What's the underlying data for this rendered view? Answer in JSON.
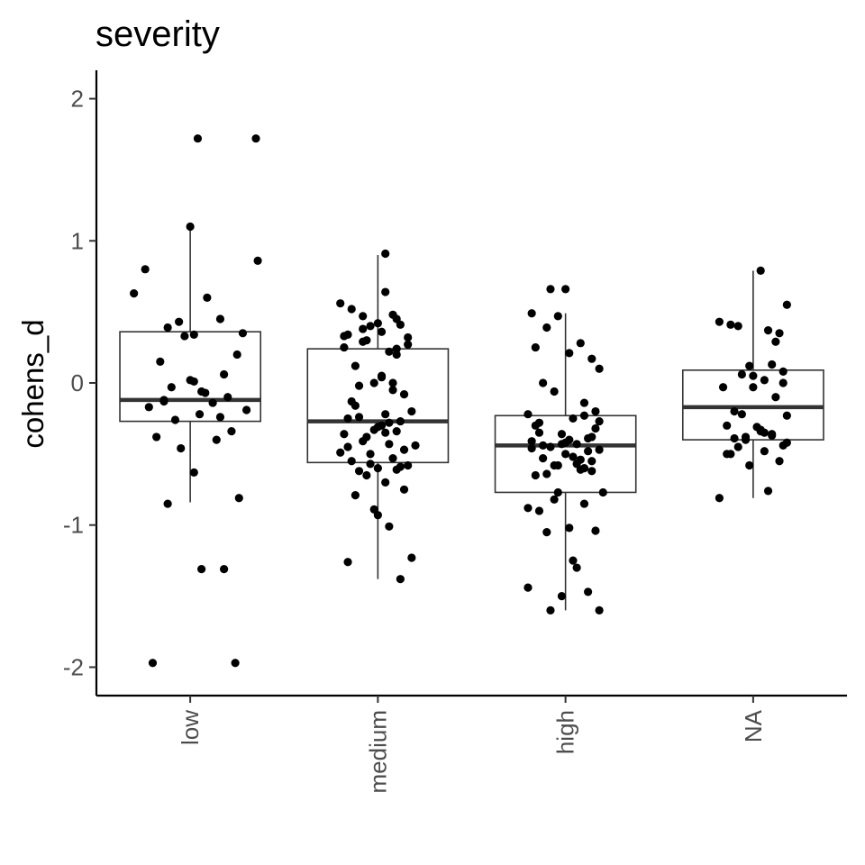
{
  "chart_data": {
    "type": "box",
    "title": "severity",
    "xlabel": "",
    "ylabel": "cohens_d",
    "ylim": [
      -2.2,
      2.2
    ],
    "yticks": [
      -2,
      -1,
      0,
      1,
      2
    ],
    "ytick_labels": [
      "-2",
      "-1",
      "0",
      "1",
      "2"
    ],
    "categories": [
      "low",
      "medium",
      "high",
      "NA"
    ],
    "grid": false,
    "legend": "none",
    "colors": {
      "points": "#000000",
      "box_outline": "#333333",
      "median": "#333333",
      "axis": "#000000",
      "tick_label": "#4d4d4d"
    },
    "boxes": [
      {
        "category": "low",
        "q1": -0.27,
        "median": -0.12,
        "q3": 0.36,
        "whisker_low": -0.84,
        "whisker_high": 1.1
      },
      {
        "category": "medium",
        "q1": -0.56,
        "median": -0.27,
        "q3": 0.24,
        "whisker_low": -1.38,
        "whisker_high": 0.9
      },
      {
        "category": "high",
        "q1": -0.77,
        "median": -0.44,
        "q3": -0.23,
        "whisker_low": -1.6,
        "whisker_high": 0.49
      },
      {
        "category": "NA",
        "q1": -0.4,
        "median": -0.17,
        "q3": 0.09,
        "whisker_low": -0.81,
        "whisker_high": 0.79
      }
    ],
    "points": [
      {
        "category": "low",
        "jitter": [
          0.04,
          0.35,
          0.0,
          -0.24,
          0.36,
          -0.3,
          0.09,
          -0.06,
          0.16,
          -0.12,
          0.28,
          -0.03,
          0.25,
          -0.16,
          0.18,
          -0.1,
          0.08,
          0.2,
          -0.14,
          0.12,
          -0.22,
          0.3,
          0.05,
          -0.08,
          0.22,
          -0.18,
          0.14,
          -0.05,
          0.02,
          0.26,
          -0.12,
          0.18,
          0.06,
          0.24,
          -0.2,
          0.02,
          0.16,
          -0.14,
          0.02,
          0.06,
          0.0
        ],
        "values": [
          1.72,
          1.72,
          1.1,
          0.8,
          0.86,
          0.63,
          0.6,
          0.43,
          0.45,
          0.39,
          0.35,
          0.33,
          0.2,
          0.15,
          0.06,
          -0.03,
          -0.07,
          -0.1,
          -0.12,
          -0.14,
          -0.17,
          -0.19,
          -0.22,
          -0.26,
          -0.34,
          -0.38,
          -0.4,
          -0.46,
          -0.63,
          -0.81,
          -0.85,
          -1.31,
          -1.31,
          -1.97,
          -1.97,
          0.34,
          -0.24,
          -0.13,
          0.01,
          -0.06,
          0.02
        ]
      },
      {
        "category": "medium",
        "jitter": [
          0.04,
          0.04,
          -0.2,
          -0.14,
          -0.08,
          0.08,
          0.0,
          0.12,
          -0.04,
          0.02,
          -0.16,
          0.16,
          -0.06,
          -0.18,
          0.1,
          0.06,
          -0.12,
          0.02,
          -0.02,
          -0.1,
          0.14,
          -0.14,
          0.18,
          -0.16,
          0.06,
          0.0,
          0.1,
          -0.18,
          -0.08,
          0.2,
          -0.2,
          0.08,
          -0.04,
          0.12,
          -0.1,
          -0.06,
          0.04,
          0.14,
          -0.12,
          0.0,
          0.06,
          0.18,
          -0.16,
          0.12,
          -0.02,
          0.1,
          -0.08,
          0.16,
          0.02,
          0.08,
          -0.12,
          0.04,
          -0.06,
          0.14,
          -0.14,
          0.0,
          0.1,
          -0.02,
          0.06,
          -0.18,
          0.12,
          -0.1,
          0.02,
          -0.04,
          0.08,
          0.16,
          -0.16,
          0.04,
          0.1,
          -0.08
        ],
        "values": [
          0.91,
          0.64,
          0.56,
          0.52,
          0.47,
          0.48,
          0.42,
          0.41,
          0.4,
          0.36,
          0.34,
          0.32,
          0.3,
          0.25,
          0.24,
          0.22,
          0.12,
          0.04,
          0.0,
          -0.02,
          -0.08,
          -0.13,
          -0.2,
          -0.25,
          -0.28,
          -0.31,
          -0.34,
          -0.36,
          -0.41,
          -0.44,
          -0.49,
          -0.53,
          -0.57,
          -0.59,
          -0.62,
          -0.65,
          -0.7,
          -0.75,
          -0.79,
          -0.93,
          -1.01,
          -1.23,
          -1.26,
          -1.38,
          -0.89,
          0.45,
          0.38,
          0.27,
          0.05,
          -0.05,
          -0.16,
          -0.22,
          -0.38,
          -0.47,
          -0.55,
          -0.6,
          0.2,
          -0.33,
          -0.43,
          0.33,
          -0.27,
          -0.24,
          -0.3,
          -0.5,
          0.0,
          -0.58,
          -0.45,
          -0.35,
          -0.61,
          0.29
        ]
      },
      {
        "category": "high",
        "jitter": [
          -0.08,
          0.0,
          -0.18,
          -0.1,
          -0.04,
          0.08,
          -0.16,
          0.14,
          0.02,
          -0.12,
          0.18,
          -0.06,
          0.1,
          -0.2,
          0.04,
          -0.14,
          0.16,
          -0.02,
          0.12,
          -0.18,
          0.06,
          -0.08,
          0.18,
          0.0,
          -0.12,
          0.14,
          -0.04,
          0.08,
          -0.16,
          0.2,
          -0.06,
          0.1,
          -0.14,
          0.02,
          0.16,
          -0.1,
          0.06,
          -0.2,
          0.12,
          -0.02,
          0.18,
          -0.08,
          0.04,
          -0.16,
          0.14,
          0.0,
          -0.12,
          0.1,
          -0.04,
          0.16,
          -0.18,
          0.08,
          -0.06,
          0.12,
          0.02,
          -0.14,
          0.18,
          -0.1,
          0.04,
          0.1,
          -0.2,
          0.06,
          -0.02,
          0.14
        ],
        "values": [
          0.66,
          0.66,
          0.49,
          0.39,
          0.47,
          0.28,
          0.25,
          0.17,
          0.21,
          0.0,
          0.1,
          -0.06,
          -0.14,
          -0.22,
          -0.25,
          -0.28,
          -0.32,
          -0.36,
          -0.39,
          -0.41,
          -0.43,
          -0.45,
          -0.47,
          -0.5,
          -0.53,
          -0.55,
          -0.58,
          -0.61,
          -0.65,
          -0.77,
          -0.82,
          -0.85,
          -0.9,
          -1.02,
          -1.04,
          -1.05,
          -1.3,
          -1.44,
          -1.47,
          -1.5,
          -1.6,
          -1.6,
          -1.25,
          -0.3,
          -0.38,
          -0.42,
          -0.44,
          -0.6,
          -0.77,
          -0.2,
          -0.46,
          -0.54,
          -0.58,
          -0.48,
          -0.4,
          -0.35,
          -0.27,
          -0.64,
          -0.52,
          -0.23,
          -0.88,
          -0.57,
          -0.43,
          -0.62
        ]
      },
      {
        "category": "NA",
        "jitter": [
          0.04,
          0.18,
          -0.18,
          -0.12,
          0.08,
          0.14,
          -0.02,
          0.1,
          -0.06,
          0.06,
          0.16,
          -0.16,
          0.0,
          0.12,
          -0.1,
          0.18,
          -0.14,
          0.04,
          0.1,
          -0.04,
          0.16,
          -0.08,
          0.06,
          -0.12,
          0.14,
          -0.02,
          0.08,
          -0.18,
          0.12,
          0.0,
          -0.1,
          0.18,
          -0.06,
          0.04,
          -0.14,
          0.1,
          0.02,
          -0.08,
          0.16,
          0.06,
          -0.04
        ],
        "values": [
          0.79,
          0.55,
          0.43,
          0.41,
          0.37,
          0.35,
          0.12,
          0.13,
          0.06,
          0.02,
          0.0,
          -0.03,
          -0.03,
          -0.1,
          -0.2,
          -0.23,
          -0.3,
          -0.34,
          -0.37,
          -0.4,
          -0.44,
          -0.45,
          -0.48,
          -0.5,
          -0.55,
          -0.58,
          -0.76,
          -0.81,
          0.29,
          0.05,
          -0.39,
          -0.42,
          -0.22,
          -0.33,
          -0.5,
          -0.36,
          -0.31,
          0.4,
          0.08,
          -0.35,
          -0.38
        ]
      }
    ]
  }
}
